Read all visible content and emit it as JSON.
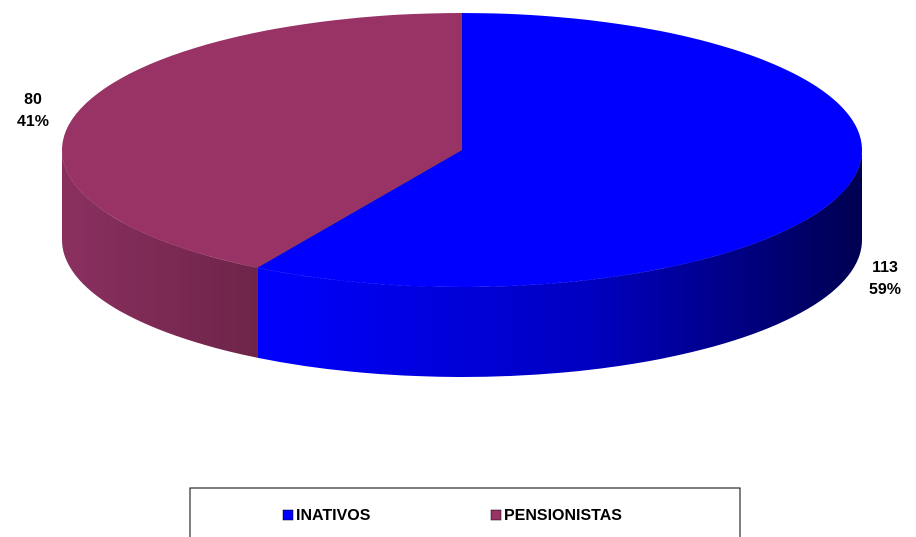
{
  "chart_data": {
    "type": "pie3d",
    "categories": [
      "INATIVOS",
      "PENSIONISTAS"
    ],
    "values": [
      113,
      80
    ],
    "percent_labels": [
      "59%",
      "41%"
    ],
    "colors": [
      "#0000ff",
      "#993366"
    ],
    "legend": "bottom"
  }
}
